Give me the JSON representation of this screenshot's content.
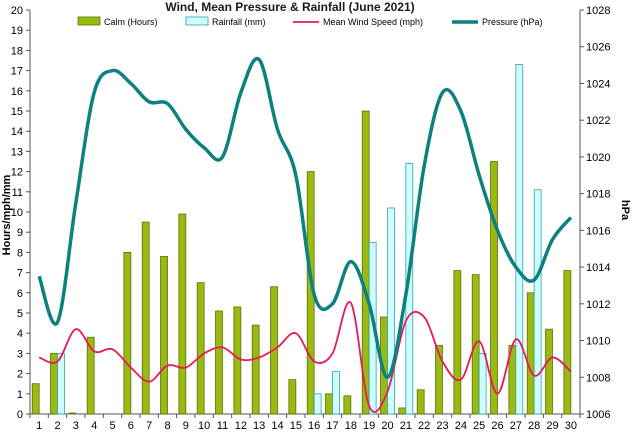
{
  "chart_data": {
    "type": "bar+line",
    "title": "Wind, Mean Pressure & Rainfall (June 2021)",
    "ylabel_left": "Hours/mph/mm",
    "ylabel_right": "hPa",
    "categories": [
      "1",
      "2",
      "3",
      "4",
      "5",
      "6",
      "7",
      "8",
      "9",
      "10",
      "11",
      "12",
      "13",
      "14",
      "15",
      "16",
      "17",
      "18",
      "19",
      "20",
      "21",
      "22",
      "23",
      "24",
      "25",
      "26",
      "27",
      "28",
      "29",
      "30"
    ],
    "ylim_left": [
      0,
      20
    ],
    "ylim_right": [
      1006,
      1028
    ],
    "yticks_left": [
      "0",
      "1",
      "2",
      "3",
      "4",
      "5",
      "6",
      "7",
      "8",
      "9",
      "10",
      "11",
      "12",
      "13",
      "14",
      "15",
      "16",
      "17",
      "18",
      "19",
      "20"
    ],
    "yticks_right": [
      "1006",
      "1008",
      "1010",
      "1012",
      "1014",
      "1016",
      "1018",
      "1020",
      "1022",
      "1024",
      "1026",
      "1028"
    ],
    "legend_position": "top",
    "series": [
      {
        "name": "Calm (Hours)",
        "type": "bar",
        "axis": "left",
        "color": "#99bb11",
        "values": [
          1.5,
          3.0,
          0.05,
          3.8,
          0,
          8.0,
          9.5,
          7.8,
          9.9,
          6.5,
          5.1,
          5.3,
          4.4,
          6.3,
          1.7,
          12.0,
          1.0,
          0.9,
          15.0,
          4.8,
          0.3,
          1.2,
          3.4,
          7.1,
          6.9,
          12.5,
          3.4,
          6.0,
          4.2,
          7.1
        ]
      },
      {
        "name": "Rainfall (mm)",
        "type": "bar",
        "axis": "left",
        "color": "#ccffff",
        "values": [
          0,
          3.0,
          0,
          0,
          0,
          0,
          0,
          0,
          0,
          0,
          0,
          0,
          0,
          0,
          0,
          1.0,
          2.1,
          0,
          8.5,
          10.2,
          12.4,
          0,
          0,
          0,
          3.0,
          0,
          17.3,
          11.1,
          0,
          0
        ]
      },
      {
        "name": "Mean Wind Speed (mph)",
        "type": "line",
        "axis": "left",
        "color": "#e8185a",
        "values": [
          2.8,
          2.6,
          4.2,
          3.1,
          3.2,
          2.3,
          1.6,
          2.4,
          2.3,
          3.0,
          3.3,
          2.7,
          2.8,
          3.3,
          4.0,
          2.6,
          3.0,
          5.5,
          0.4,
          1.1,
          4.6,
          4.8,
          2.6,
          1.7,
          3.6,
          1.0,
          3.7,
          1.9,
          2.8,
          2.1
        ]
      },
      {
        "name": "Pressure (hPa)",
        "type": "line",
        "axis": "right",
        "color": "#0d8080",
        "values": [
          1013.5,
          1011.0,
          1017.5,
          1023.5,
          1024.7,
          1024.0,
          1023.0,
          1022.9,
          1021.5,
          1020.5,
          1020.0,
          1023.5,
          1025.3,
          1021.5,
          1019.0,
          1012.5,
          1012.0,
          1014.3,
          1012.0,
          1008.0,
          1012.5,
          1019.5,
          1023.5,
          1022.5,
          1019.0,
          1016.0,
          1014.0,
          1013.3,
          1015.5,
          1016.7
        ]
      }
    ]
  }
}
